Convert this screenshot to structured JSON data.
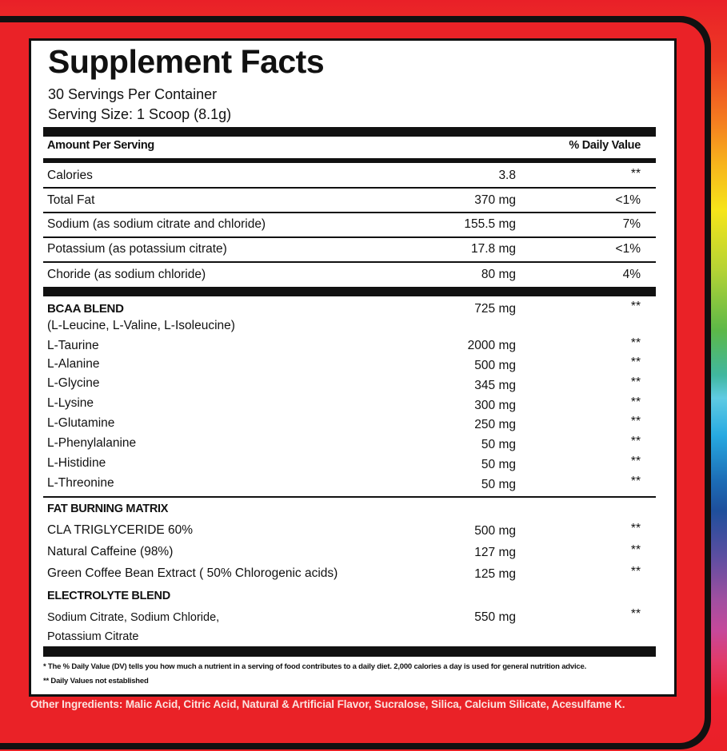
{
  "title": "Supplement Facts",
  "servings_per_container": "30 Servings Per Container",
  "serving_size": "Serving Size: 1 Scoop (8.1g)",
  "header": {
    "amount": "Amount Per Serving",
    "daily_value": "% Daily Value"
  },
  "nutrients": [
    {
      "name": "Calories",
      "amount": "3.8",
      "dv": "**"
    },
    {
      "name": "Total Fat",
      "amount": "370 mg",
      "dv": "<1%"
    },
    {
      "name": "Sodium (as sodium citrate and chloride)",
      "amount": "155.5 mg",
      "dv": "7%"
    },
    {
      "name": "Potassium (as potassium citrate)",
      "amount": "17.8 mg",
      "dv": "<1%"
    },
    {
      "name": "Choride (as sodium chloride)",
      "amount": "80 mg",
      "dv": "4%"
    }
  ],
  "bcaa": {
    "name": "BCAA BLEND",
    "detail": "(L-Leucine, L-Valine, L-Isoleucine)",
    "amount": "725 mg",
    "dv": "**"
  },
  "amino_acids": [
    {
      "name": "L-Taurine",
      "amount": "2000 mg",
      "dv": "**"
    },
    {
      "name": "L-Alanine",
      "amount": "500 mg",
      "dv": "**"
    },
    {
      "name": "L-Glycine",
      "amount": "345 mg",
      "dv": "**"
    },
    {
      "name": "L-Lysine",
      "amount": "300 mg",
      "dv": "**"
    },
    {
      "name": "L-Glutamine",
      "amount": "250 mg",
      "dv": "**"
    },
    {
      "name": "L-Phenylalanine",
      "amount": "50 mg",
      "dv": "**"
    },
    {
      "name": "L-Histidine",
      "amount": "50 mg",
      "dv": "**"
    },
    {
      "name": "L-Threonine",
      "amount": "50 mg",
      "dv": "**"
    }
  ],
  "fat_burning": {
    "heading": "FAT BURNING MATRIX",
    "items": [
      {
        "name": "CLA TRIGLYCERIDE 60%",
        "amount": "500 mg",
        "dv": "**"
      },
      {
        "name": "Natural Caffeine (98%)",
        "amount": "127 mg",
        "dv": "**"
      },
      {
        "name": "Green Coffee Bean Extract ( 50% Chlorogenic acids)",
        "amount": "125 mg",
        "dv": "**"
      }
    ]
  },
  "electrolyte": {
    "heading": "ELECTROLYTE BLEND",
    "line1": "Sodium Citrate, Sodium Chloride,",
    "line2": "Potassium Citrate",
    "amount": "550 mg",
    "dv": "**"
  },
  "footnotes": [
    "* The % Daily Value (DV) tells you how much a nutrient in a serving of food contributes to a daily diet.  2,000 calories a day is used for general nutrition advice.",
    "** Daily Values not established"
  ],
  "other_ingredients": "Other Ingredients: Malic Acid, Citric Acid, Natural & Artificial Flavor, Sucralose, Silica, Calcium Silicate, Acesulfame K.",
  "colors": {
    "frame_red": "#ea2227",
    "text": "#111111",
    "panel": "#ffffff",
    "other_ingredients_text": "#fbe3df"
  }
}
